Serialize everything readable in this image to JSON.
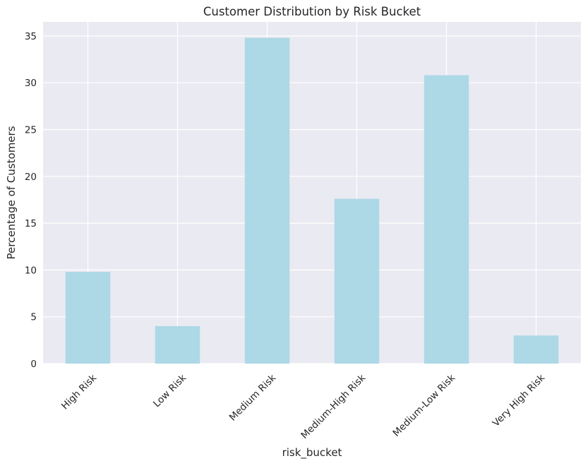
{
  "chart_data": {
    "type": "bar",
    "title": "Customer Distribution by Risk Bucket",
    "xlabel": "risk_bucket",
    "ylabel": "Percentage of Customers",
    "categories": [
      "High Risk",
      "Low Risk",
      "Medium Risk",
      "Medium-High Risk",
      "Medium-Low Risk",
      "Very High Risk"
    ],
    "values": [
      9.8,
      4.0,
      34.8,
      17.6,
      30.8,
      3.0
    ],
    "ylim": [
      0,
      36.5
    ],
    "yticks": [
      0,
      5,
      10,
      15,
      20,
      25,
      30,
      35
    ],
    "grid": true,
    "bar_color": "#add8e6",
    "plot_background": "#eaeaf2",
    "grid_color": "#ffffff"
  }
}
